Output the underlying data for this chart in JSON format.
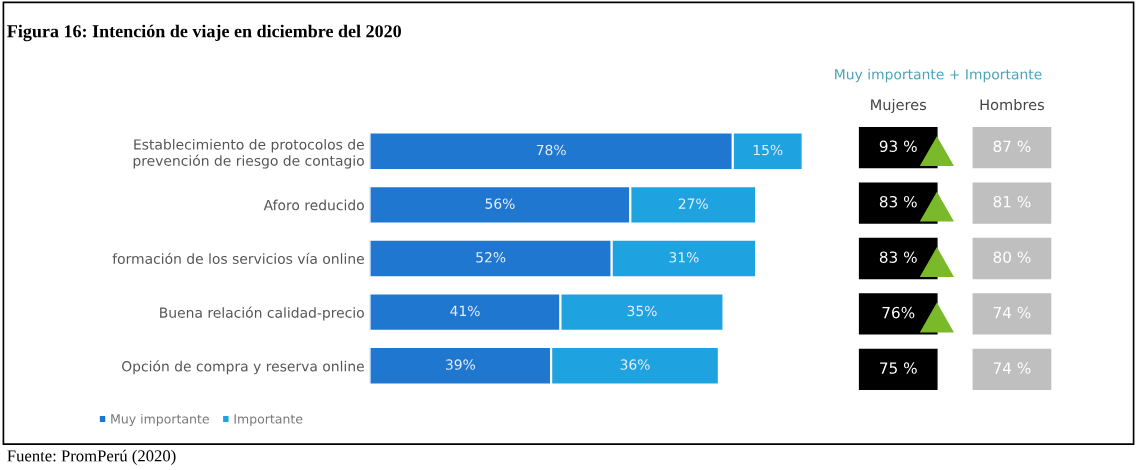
{
  "chart_data": [
    {
      "type": "bar",
      "orientation": "horizontal",
      "stacked": true,
      "title": "Figura 16: Intención de viaje en diciembre del 2020",
      "categories": [
        "Establecimiento de protocolos de\nprevención de riesgo de contagio",
        "Aforo reducido",
        "formación de los servicios vía online",
        "Buena relación calidad-precio",
        "Opción de compra y reserva online"
      ],
      "series": [
        {
          "name": "Muy importante",
          "color": "#1f77d0",
          "values": [
            78,
            56,
            52,
            41,
            39
          ],
          "value_labels": [
            "78%",
            "56%",
            "52%",
            "41%",
            "39%"
          ]
        },
        {
          "name": "Importante",
          "color": "#1ea2e0",
          "values": [
            15,
            27,
            31,
            35,
            36
          ],
          "value_labels": [
            "15%",
            "27%",
            "31%",
            "35%",
            "36%"
          ]
        }
      ],
      "legend": "bottom left",
      "grid": false,
      "tick_labels": "y",
      "annotations": [
        "Fuente: PromPerú (2020)"
      ]
    },
    {
      "type": "other",
      "title": "Muy importante + Importante",
      "categories": [
        "Mujeres",
        "Hombres"
      ],
      "cell_labels": [
        [
          "93 %",
          "87 %"
        ],
        [
          "83 %",
          "81 %"
        ],
        [
          "83 %",
          "80 %"
        ],
        [
          "76%",
          "74 %"
        ],
        [
          "75 %",
          "74 %"
        ]
      ],
      "colors": [
        "#000000",
        "#bfbfbf"
      ],
      "series": [
        {
          "type": "scatter",
          "marker": "triangle",
          "color": "#7ab929",
          "x": [
            "Mujeres",
            "Mujeres",
            "Mujeres",
            "Mujeres",
            null
          ],
          "values": [
            true,
            true,
            true,
            true,
            false
          ]
        }
      ]
    }
  ]
}
